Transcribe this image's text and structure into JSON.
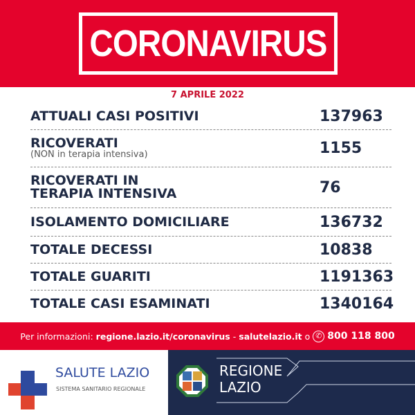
{
  "header": {
    "title": "CORONAVIRUS",
    "date": "7 APRILE 2022"
  },
  "rows": [
    {
      "label": "ATTUALI CASI POSITIVI",
      "sub": "",
      "value": "137963"
    },
    {
      "label": "RICOVERATI",
      "sub": "(NON in terapia intensiva)",
      "value": "1155"
    },
    {
      "label": "RICOVERATI IN TERAPIA INTENSIVA",
      "sub": "",
      "value": "76"
    },
    {
      "label": "ISOLAMENTO DOMICILIARE",
      "sub": "",
      "value": "136732"
    },
    {
      "label": "TOTALE DECESSI",
      "sub": "",
      "value": "10838"
    },
    {
      "label": "TOTALE GUARITI",
      "sub": "",
      "value": "1191363"
    },
    {
      "label": "TOTALE CASI ESAMINATI",
      "sub": "",
      "value": "1340164"
    }
  ],
  "info": {
    "prefix": "Per informazioni:",
    "link1": "regione.lazio.it/coronavirus",
    "sep": "-",
    "link2": "salutelazio.it",
    "or": "o",
    "phone": "800 118 800",
    "phone_icon": "phone-icon"
  },
  "logos": {
    "salute_title": "SALUTE LAZIO",
    "salute_sub": "SISTEMA SANITARIO REGIONALE",
    "regione_line1": "REGIONE",
    "regione_line2": "LAZIO"
  },
  "colors": {
    "red": "#e4032c",
    "navy": "#1d2a4c",
    "text": "#1f2a44"
  }
}
